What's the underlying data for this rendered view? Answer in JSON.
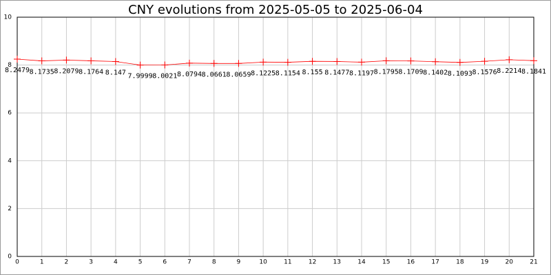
{
  "chart_data": {
    "type": "line",
    "title": "CNY evolutions from 2025-05-05 to 2025-06-04",
    "x": [
      0,
      1,
      2,
      3,
      4,
      5,
      6,
      7,
      8,
      9,
      10,
      11,
      12,
      13,
      14,
      15,
      16,
      17,
      18,
      19,
      20,
      21
    ],
    "values": [
      8.2479,
      8.1735,
      8.2079,
      8.1764,
      8.147,
      7.9999,
      8.0021,
      8.0794,
      8.0661,
      8.0659,
      8.1225,
      8.1154,
      8.155,
      8.1477,
      8.1197,
      8.1795,
      8.1709,
      8.1402,
      8.1093,
      8.1576,
      8.2214,
      8.1841
    ],
    "color": "#ff0000",
    "marker": "+",
    "xlim": [
      0,
      21
    ],
    "xticks": [
      0,
      1,
      2,
      3,
      4,
      5,
      6,
      7,
      8,
      9,
      10,
      11,
      12,
      13,
      14,
      15,
      16,
      17,
      18,
      19,
      20,
      21
    ],
    "ylim": [
      0,
      10
    ],
    "yticks": [
      0,
      2,
      4,
      6,
      8,
      10
    ],
    "grid": true
  }
}
